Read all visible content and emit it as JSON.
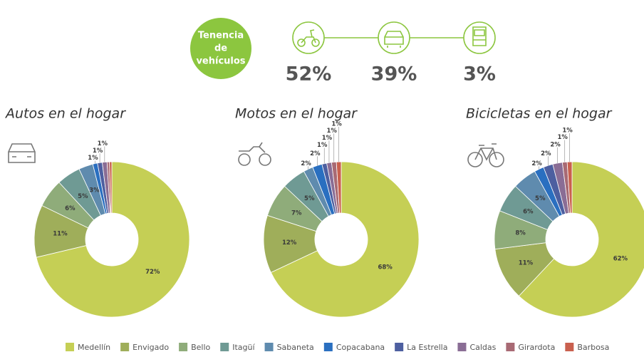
{
  "header": {
    "title": [
      "Tenencia",
      "de",
      "vehículos"
    ],
    "stats": [
      "52%",
      "39%",
      "3%"
    ]
  },
  "legend": {
    "categories": [
      "Medellín",
      "Envigado",
      "Bello",
      "Itagüí",
      "Sabaneta",
      "Copacabana",
      "La Estrella",
      "Caldas",
      "Girardota",
      "Barbosa"
    ],
    "colors": [
      "#c5cf55",
      "#9fae5a",
      "#8fac7a",
      "#6f9a94",
      "#5f8bae",
      "#2a6fc0",
      "#4d5fa0",
      "#8a6d95",
      "#a86a74",
      "#c9604e"
    ]
  },
  "chart_data": [
    {
      "type": "pie",
      "title": "Autos en el hogar",
      "values": [
        72,
        11,
        6,
        5,
        3,
        1,
        1,
        1,
        0.5,
        0.5
      ],
      "value_labels": [
        "72%",
        "11%",
        "6%",
        "5%",
        "3%",
        "1%",
        "1%",
        "1%",
        null,
        null
      ]
    },
    {
      "type": "pie",
      "title": "Motos en el hogar",
      "values": [
        68,
        12,
        7,
        5,
        2,
        2,
        1,
        1,
        1,
        1
      ],
      "value_labels": [
        "68%",
        "12%",
        "7%",
        "5%",
        "2%",
        "2%",
        "1%",
        "1%",
        "1%",
        "1%"
      ]
    },
    {
      "type": "pie",
      "title": "Bicicletas en el hogar",
      "values": [
        62,
        11,
        8,
        6,
        5,
        2,
        2,
        2,
        1,
        1
      ],
      "value_labels": [
        "62%",
        "11%",
        "8%",
        "6%",
        "5%",
        "2%",
        "2%",
        "2%",
        "1%",
        "1%"
      ]
    }
  ]
}
